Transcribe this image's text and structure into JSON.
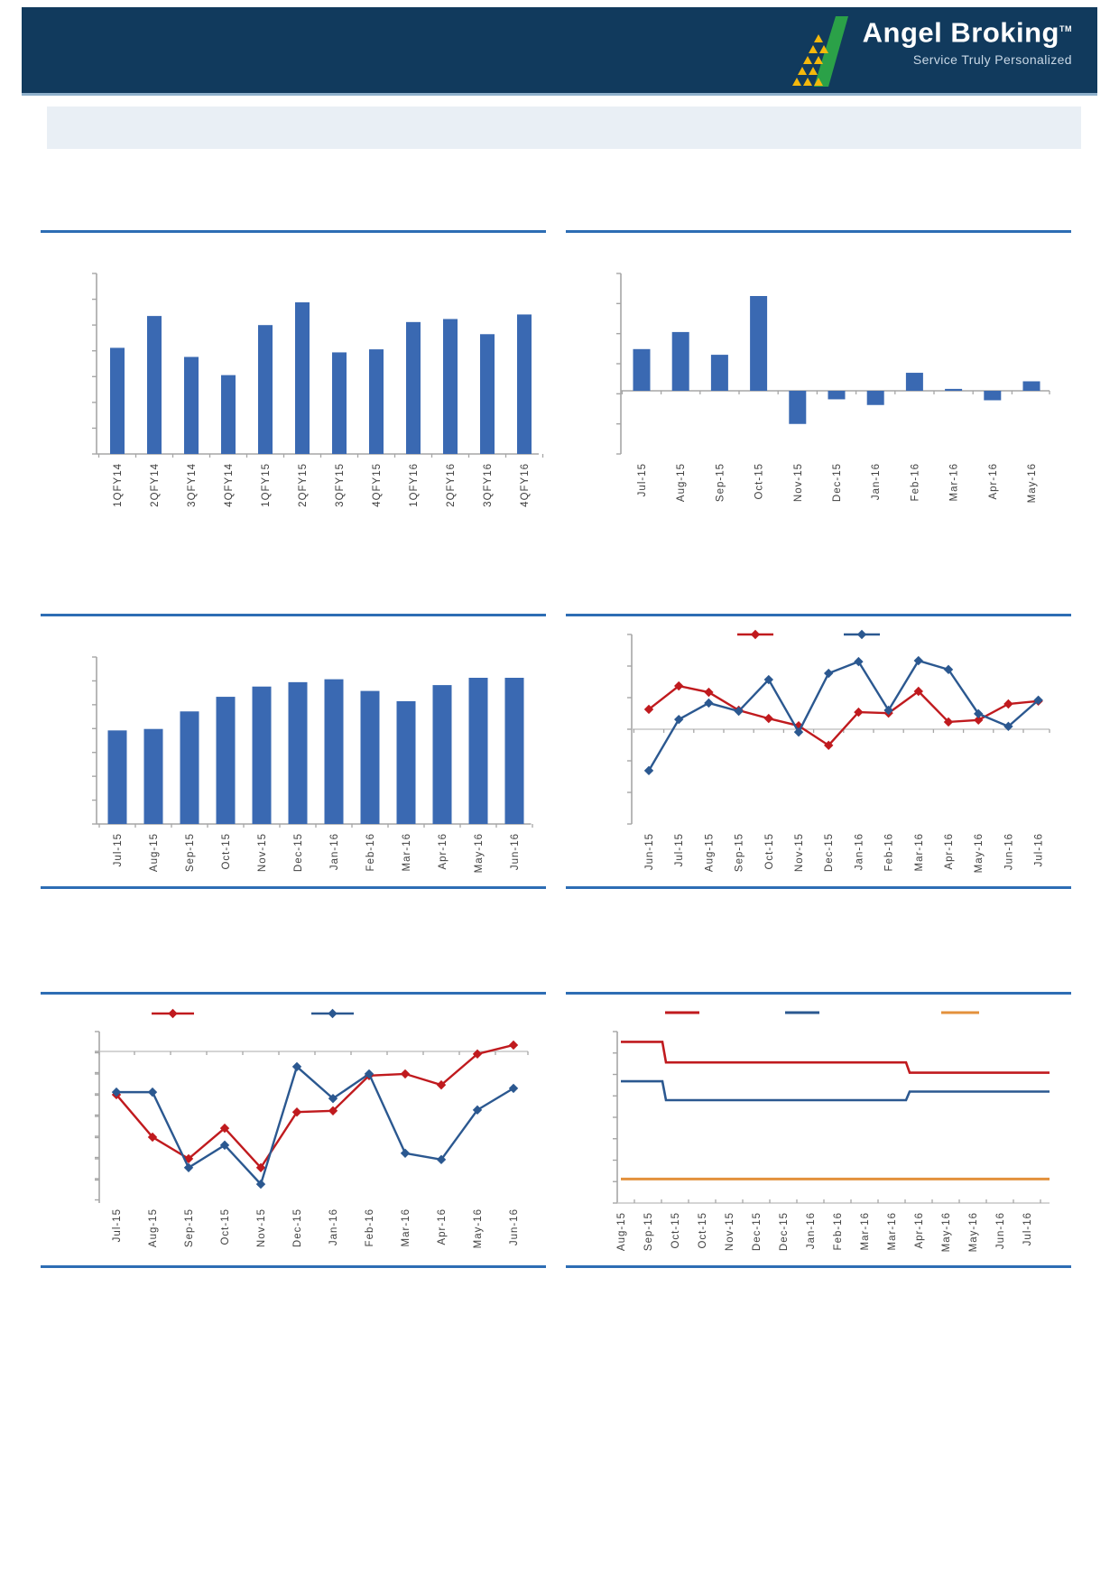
{
  "header": {
    "brand": "Angel Broking",
    "trademark": "TM",
    "tagline": "Service Truly Personalized"
  },
  "colors": {
    "header_bg": "#113A5D",
    "banner_bg": "#E9EFF5",
    "section_rule": "#2D6DB4",
    "bar_blue": "#3A69B2",
    "line_red": "#C01A1E",
    "line_navy": "#2B5890",
    "line_orange": "#E3913C",
    "logo_green": "#2BA148",
    "logo_gold": "#F5B80C",
    "axis_gray": "#A6A6A6"
  },
  "chart_data": [
    {
      "id": "chart1",
      "type": "bar",
      "title": "",
      "xlabel": "",
      "ylabel": "",
      "categories": [
        "1QFY14",
        "2QFY14",
        "3QFY14",
        "4QFY14",
        "1QFY15",
        "2QFY15",
        "3QFY15",
        "4QFY15",
        "1QFY16",
        "2QFY16",
        "3QFY16",
        "4QFY16"
      ],
      "values": [
        70,
        91,
        64,
        52,
        85,
        100,
        67,
        69,
        87,
        89,
        79,
        92
      ],
      "ylim": [
        0,
        120
      ],
      "bar_color": "#3A69B2",
      "grid": false,
      "note": "y-axis ticks unlabeled"
    },
    {
      "id": "chart2",
      "type": "bar",
      "title": "",
      "xlabel": "",
      "ylabel": "",
      "categories": [
        "Jul-15",
        "Aug-15",
        "Sep-15",
        "Oct-15",
        "Nov-15",
        "Dec-15",
        "Jan-16",
        "Feb-16",
        "Mar-16",
        "Apr-16",
        "May-16"
      ],
      "values": [
        44,
        62,
        38,
        100,
        -35,
        -9,
        -15,
        19,
        2,
        -10,
        10
      ],
      "ylim": [
        -70,
        130
      ],
      "bar_color": "#3A69B2",
      "grid": false,
      "note": "positive and negative bars around zero line; y-axis ticks unlabeled"
    },
    {
      "id": "chart3",
      "type": "bar",
      "title": "",
      "xlabel": "",
      "ylabel": "",
      "categories": [
        "Jul-15",
        "Aug-15",
        "Sep-15",
        "Oct-15",
        "Nov-15",
        "Dec-15",
        "Jan-16",
        "Feb-16",
        "Mar-16",
        "Apr-16",
        "May-16",
        "Jun-16"
      ],
      "values": [
        64,
        65,
        77,
        87,
        94,
        97,
        99,
        91,
        84,
        95,
        100,
        100
      ],
      "ylim": [
        0,
        114
      ],
      "bar_color": "#3A69B2",
      "grid": false,
      "note": "y-axis ticks unlabeled"
    },
    {
      "id": "chart4",
      "type": "line",
      "title": "",
      "xlabel": "",
      "ylabel": "",
      "categories": [
        "Jun-15",
        "Jul-15",
        "Aug-15",
        "Sep-15",
        "Oct-15",
        "Nov-15",
        "Dec-15",
        "Jan-16",
        "Feb-16",
        "Mar-16",
        "Apr-16",
        "May-16",
        "Jun-16",
        "Jul-16"
      ],
      "series": [
        {
          "color": "#C01A1E",
          "marker": "diamond",
          "values": [
            0.63,
            1.37,
            1.17,
            0.6,
            0.34,
            0.11,
            -0.51,
            0.54,
            0.51,
            1.2,
            0.23,
            0.29,
            0.8,
            0.89
          ]
        },
        {
          "color": "#2B5890",
          "marker": "diamond",
          "values": [
            -1.31,
            0.31,
            0.83,
            0.57,
            1.57,
            -0.09,
            1.77,
            2.14,
            0.6,
            2.17,
            1.89,
            0.49,
            0.09,
            0.92
          ]
        }
      ],
      "ylim": [
        -3,
        3
      ],
      "legend_position": "top",
      "legend_labels_visible": false,
      "note": "two-series line chart with diamond markers; legend shows colored markers only; y-axis ticks unlabeled"
    },
    {
      "id": "chart5",
      "type": "line",
      "title": "",
      "xlabel": "",
      "ylabel": "",
      "categories": [
        "Jul-15",
        "Aug-15",
        "Sep-15",
        "Oct-15",
        "Nov-15",
        "Dec-15",
        "Jan-16",
        "Feb-16",
        "Mar-16",
        "Apr-16",
        "May-16",
        "Jun-16"
      ],
      "series": [
        {
          "color": "#C01A1E",
          "marker": "diamond",
          "values": [
            -1.02,
            -2.02,
            -2.53,
            -1.81,
            -2.74,
            -1.43,
            -1.4,
            -0.57,
            -0.53,
            -0.79,
            -0.06,
            0.15
          ]
        },
        {
          "color": "#2B5890",
          "marker": "diamond",
          "values": [
            -0.96,
            -0.96,
            -2.74,
            -2.21,
            -3.13,
            -0.36,
            -1.11,
            -0.53,
            -2.4,
            -2.55,
            -1.38,
            -0.87
          ]
        }
      ],
      "ylim": [
        -4,
        0.5
      ],
      "legend_position": "top",
      "legend_labels_visible": false,
      "note": "values mostly below the zero axis line at top; y-axis ticks unlabeled"
    },
    {
      "id": "chart6",
      "type": "step",
      "title": "",
      "xlabel": "",
      "ylabel": "",
      "categories": [
        "Aug-15",
        "Sep-15",
        "Oct-15",
        "Oct-15",
        "Nov-15",
        "Dec-15",
        "Dec-15",
        "Jan-16",
        "Feb-16",
        "Mar-16",
        "Mar-16",
        "Apr-16",
        "May-16",
        "May-16",
        "Jun-16",
        "Jul-16"
      ],
      "series": [
        {
          "color": "#C01A1E",
          "values": [
            9.4,
            9.4,
            8.2,
            8.2,
            8.2,
            8.2,
            8.2,
            8.2,
            8.2,
            8.2,
            8.2,
            7.6,
            7.6,
            7.6,
            7.6,
            7.6
          ]
        },
        {
          "color": "#2B5890",
          "values": [
            7.1,
            7.1,
            6.0,
            6.0,
            6.0,
            6.0,
            6.0,
            6.0,
            6.0,
            6.0,
            6.0,
            6.5,
            6.5,
            6.5,
            6.5,
            6.5
          ]
        },
        {
          "color": "#E3913C",
          "values": [
            1.4,
            1.4,
            1.4,
            1.4,
            1.4,
            1.4,
            1.4,
            1.4,
            1.4,
            1.4,
            1.4,
            1.4,
            1.4,
            1.4,
            1.4,
            1.4
          ]
        }
      ],
      "ylim": [
        0,
        10
      ],
      "legend_position": "top",
      "legend_labels_visible": false,
      "note": "three flat step lines; legend shows colored dashes only; y-axis ticks unlabeled"
    }
  ]
}
